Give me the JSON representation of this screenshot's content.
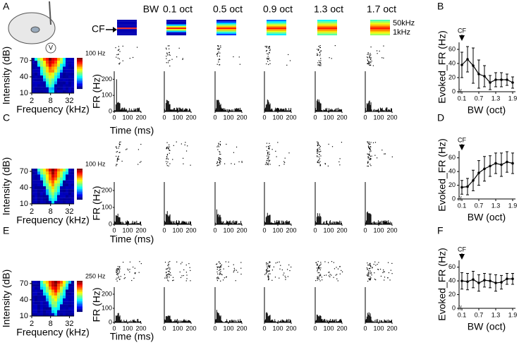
{
  "panel_labels": [
    "A",
    "B",
    "C",
    "D",
    "E",
    "F"
  ],
  "spectrograms": {
    "bw_label": "BW",
    "cf_label": "CF",
    "columns": [
      "0.1 oct",
      "0.5 oct",
      "0.9 oct",
      "1.3 oct",
      "1.7 oct"
    ],
    "freq_high": "50kHz",
    "freq_low": "1kHz"
  },
  "tuning_axes": {
    "ylabel": "Intensity (dB)",
    "ylim": [
      10,
      75
    ],
    "yticks": [
      10,
      40,
      70
    ],
    "xlabel": "Frequency (kHz)",
    "xlim": [
      2,
      45
    ],
    "xticks": [
      2,
      8,
      32
    ],
    "xscale": "log"
  },
  "tuning_maps": [
    {
      "colorbar_label": "100 Hz"
    },
    {
      "colorbar_label": "100 Hz"
    },
    {
      "colorbar_label": "250 Hz"
    }
  ],
  "psth_axes": {
    "ylabel": "FR (Hz)",
    "ylim": [
      0,
      250
    ],
    "yticks": [
      0,
      100,
      200
    ],
    "xlabel": "Time (ms)",
    "xlim": [
      0,
      200
    ],
    "xticks": [
      0,
      100,
      200
    ]
  },
  "chart_data": [
    {
      "type": "line",
      "annotation": "CF",
      "ylabel": "Evoked_FR (Hz)",
      "xlabel": "BW (oct)",
      "x": [
        0.1,
        0.3,
        0.5,
        0.7,
        0.9,
        1.1,
        1.3,
        1.5,
        1.7,
        1.9
      ],
      "xlim": [
        0,
        2
      ],
      "xticks": [
        0.1,
        0.7,
        1.3,
        1.9
      ],
      "ylim": [
        0,
        70
      ],
      "yticks": [
        0,
        20,
        40,
        60
      ],
      "color": "#000000",
      "series": [
        {
          "values": [
            38,
            46,
            37,
            25,
            22,
            13,
            17,
            17,
            17,
            13
          ],
          "errors": [
            18,
            18,
            25,
            20,
            15,
            10,
            10,
            10,
            8,
            8
          ]
        }
      ]
    },
    {
      "type": "line",
      "annotation": "CF",
      "ylabel": "Evoked_FR (Hz)",
      "xlabel": "BW (oct)",
      "x": [
        0.1,
        0.3,
        0.5,
        0.7,
        0.9,
        1.1,
        1.3,
        1.5,
        1.7,
        1.9
      ],
      "xlim": [
        0,
        2
      ],
      "xticks": [
        0.1,
        0.7,
        1.3,
        1.9
      ],
      "ylim": [
        0,
        70
      ],
      "yticks": [
        0,
        20,
        40,
        60
      ],
      "color": "#000000",
      "series": [
        {
          "values": [
            17,
            18,
            27,
            38,
            44,
            48,
            52,
            50,
            54,
            52
          ],
          "errors": [
            10,
            12,
            15,
            18,
            18,
            15,
            15,
            17,
            15,
            15
          ]
        }
      ]
    },
    {
      "type": "line",
      "annotation": "CF",
      "ylabel": "Evoked_FR (Hz)",
      "xlabel": "BW (oct)",
      "x": [
        0.1,
        0.3,
        0.5,
        0.7,
        0.9,
        1.1,
        1.3,
        1.5,
        1.7,
        1.9
      ],
      "xlim": [
        0,
        2
      ],
      "xticks": [
        0.1,
        0.7,
        1.3,
        1.9
      ],
      "ylim": [
        0,
        70
      ],
      "yticks": [
        0,
        20,
        40,
        60
      ],
      "color": "#000000",
      "series": [
        {
          "values": [
            40,
            39,
            42,
            37,
            41,
            40,
            37,
            38,
            43,
            43
          ],
          "errors": [
            12,
            12,
            12,
            12,
            10,
            10,
            12,
            10,
            8,
            8
          ]
        }
      ]
    }
  ]
}
